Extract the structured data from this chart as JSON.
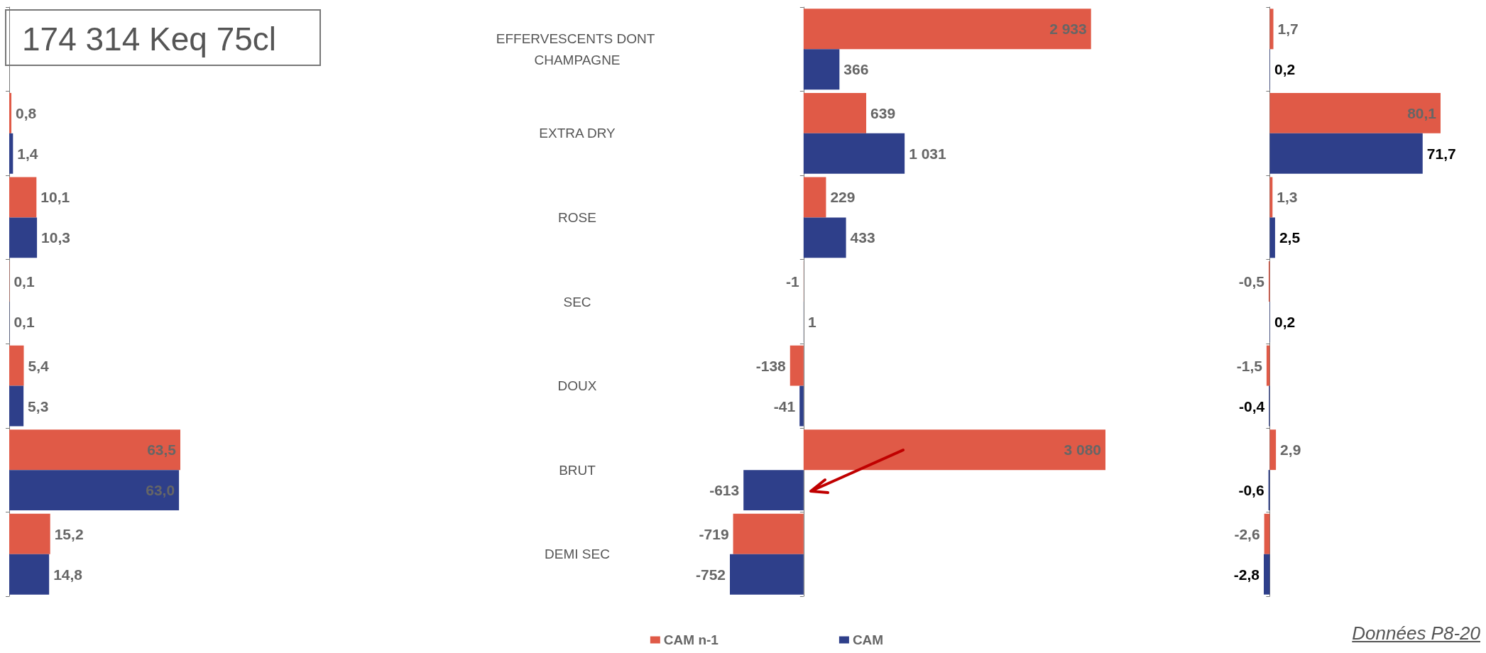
{
  "chart_data": [
    {
      "type": "bar",
      "orientation": "horizontal",
      "categories": [
        "EFFERVESCENTS DONT CHAMPAGNE",
        "EXTRA DRY",
        "ROSE",
        "SEC",
        "DOUX",
        "BRUT",
        "DEMI SEC"
      ],
      "tick_labels": false,
      "annotations": [
        "174 314 Keq 75cl"
      ],
      "series": [
        {
          "color": "#e05a47",
          "values": [
            null,
            0.8,
            10.1,
            0.1,
            5.4,
            63.5,
            15.2
          ],
          "value_labels": [
            null,
            "0,8",
            "10,1",
            "0,1",
            "5,4",
            "63,5",
            "15,2"
          ]
        },
        {
          "color": "#2e3f8a",
          "values": [
            null,
            1.4,
            10.3,
            0.1,
            5.3,
            63.0,
            14.8
          ],
          "value_labels": [
            null,
            "1,4",
            "10,3",
            "0,1",
            "5,3",
            "63,0",
            "14,8"
          ]
        }
      ]
    },
    {
      "type": "bar",
      "orientation": "horizontal",
      "categories": [
        "EFFERVESCENTS DONT CHAMPAGNE",
        "EXTRA DRY",
        "ROSE",
        "SEC",
        "DOUX",
        "BRUT",
        "DEMI SEC"
      ],
      "tick_labels": "y",
      "legend": "bottom",
      "series": [
        {
          "name": "CAM n-1",
          "color": "#e05a47",
          "values": [
            2933,
            639,
            229,
            -1,
            -138,
            3080,
            -719
          ],
          "value_labels": [
            "2 933",
            "639",
            "229",
            "-1",
            "-138",
            "3 080",
            "-719"
          ]
        },
        {
          "name": "CAM",
          "color": "#2e3f8a",
          "values": [
            366,
            1031,
            433,
            1,
            -41,
            -613,
            -752
          ],
          "value_labels": [
            "366",
            "1 031",
            "433",
            "1",
            "-41",
            "-613",
            "-752"
          ]
        }
      ]
    },
    {
      "type": "bar",
      "orientation": "horizontal",
      "categories": [
        "EFFERVESCENTS DONT CHAMPAGNE",
        "EXTRA DRY",
        "ROSE",
        "SEC",
        "DOUX",
        "BRUT",
        "DEMI SEC"
      ],
      "tick_labels": false,
      "annotations": [
        "Données P8-20"
      ],
      "series": [
        {
          "color": "#e05a47",
          "values": [
            1.7,
            80.1,
            1.3,
            -0.5,
            -1.5,
            2.9,
            -2.6
          ],
          "value_labels": [
            "1,7",
            "80,1",
            "1,3",
            "-0,5",
            "-1,5",
            "2,9",
            "-2,6"
          ]
        },
        {
          "color": "#2e3f8a",
          "values": [
            0.2,
            71.7,
            2.5,
            0.2,
            -0.4,
            -0.6,
            -2.8
          ],
          "value_labels": [
            "0,2",
            "71,7",
            "2,5",
            "0,2",
            "-0,4",
            "-0,6",
            "-2,8"
          ]
        }
      ]
    }
  ]
}
